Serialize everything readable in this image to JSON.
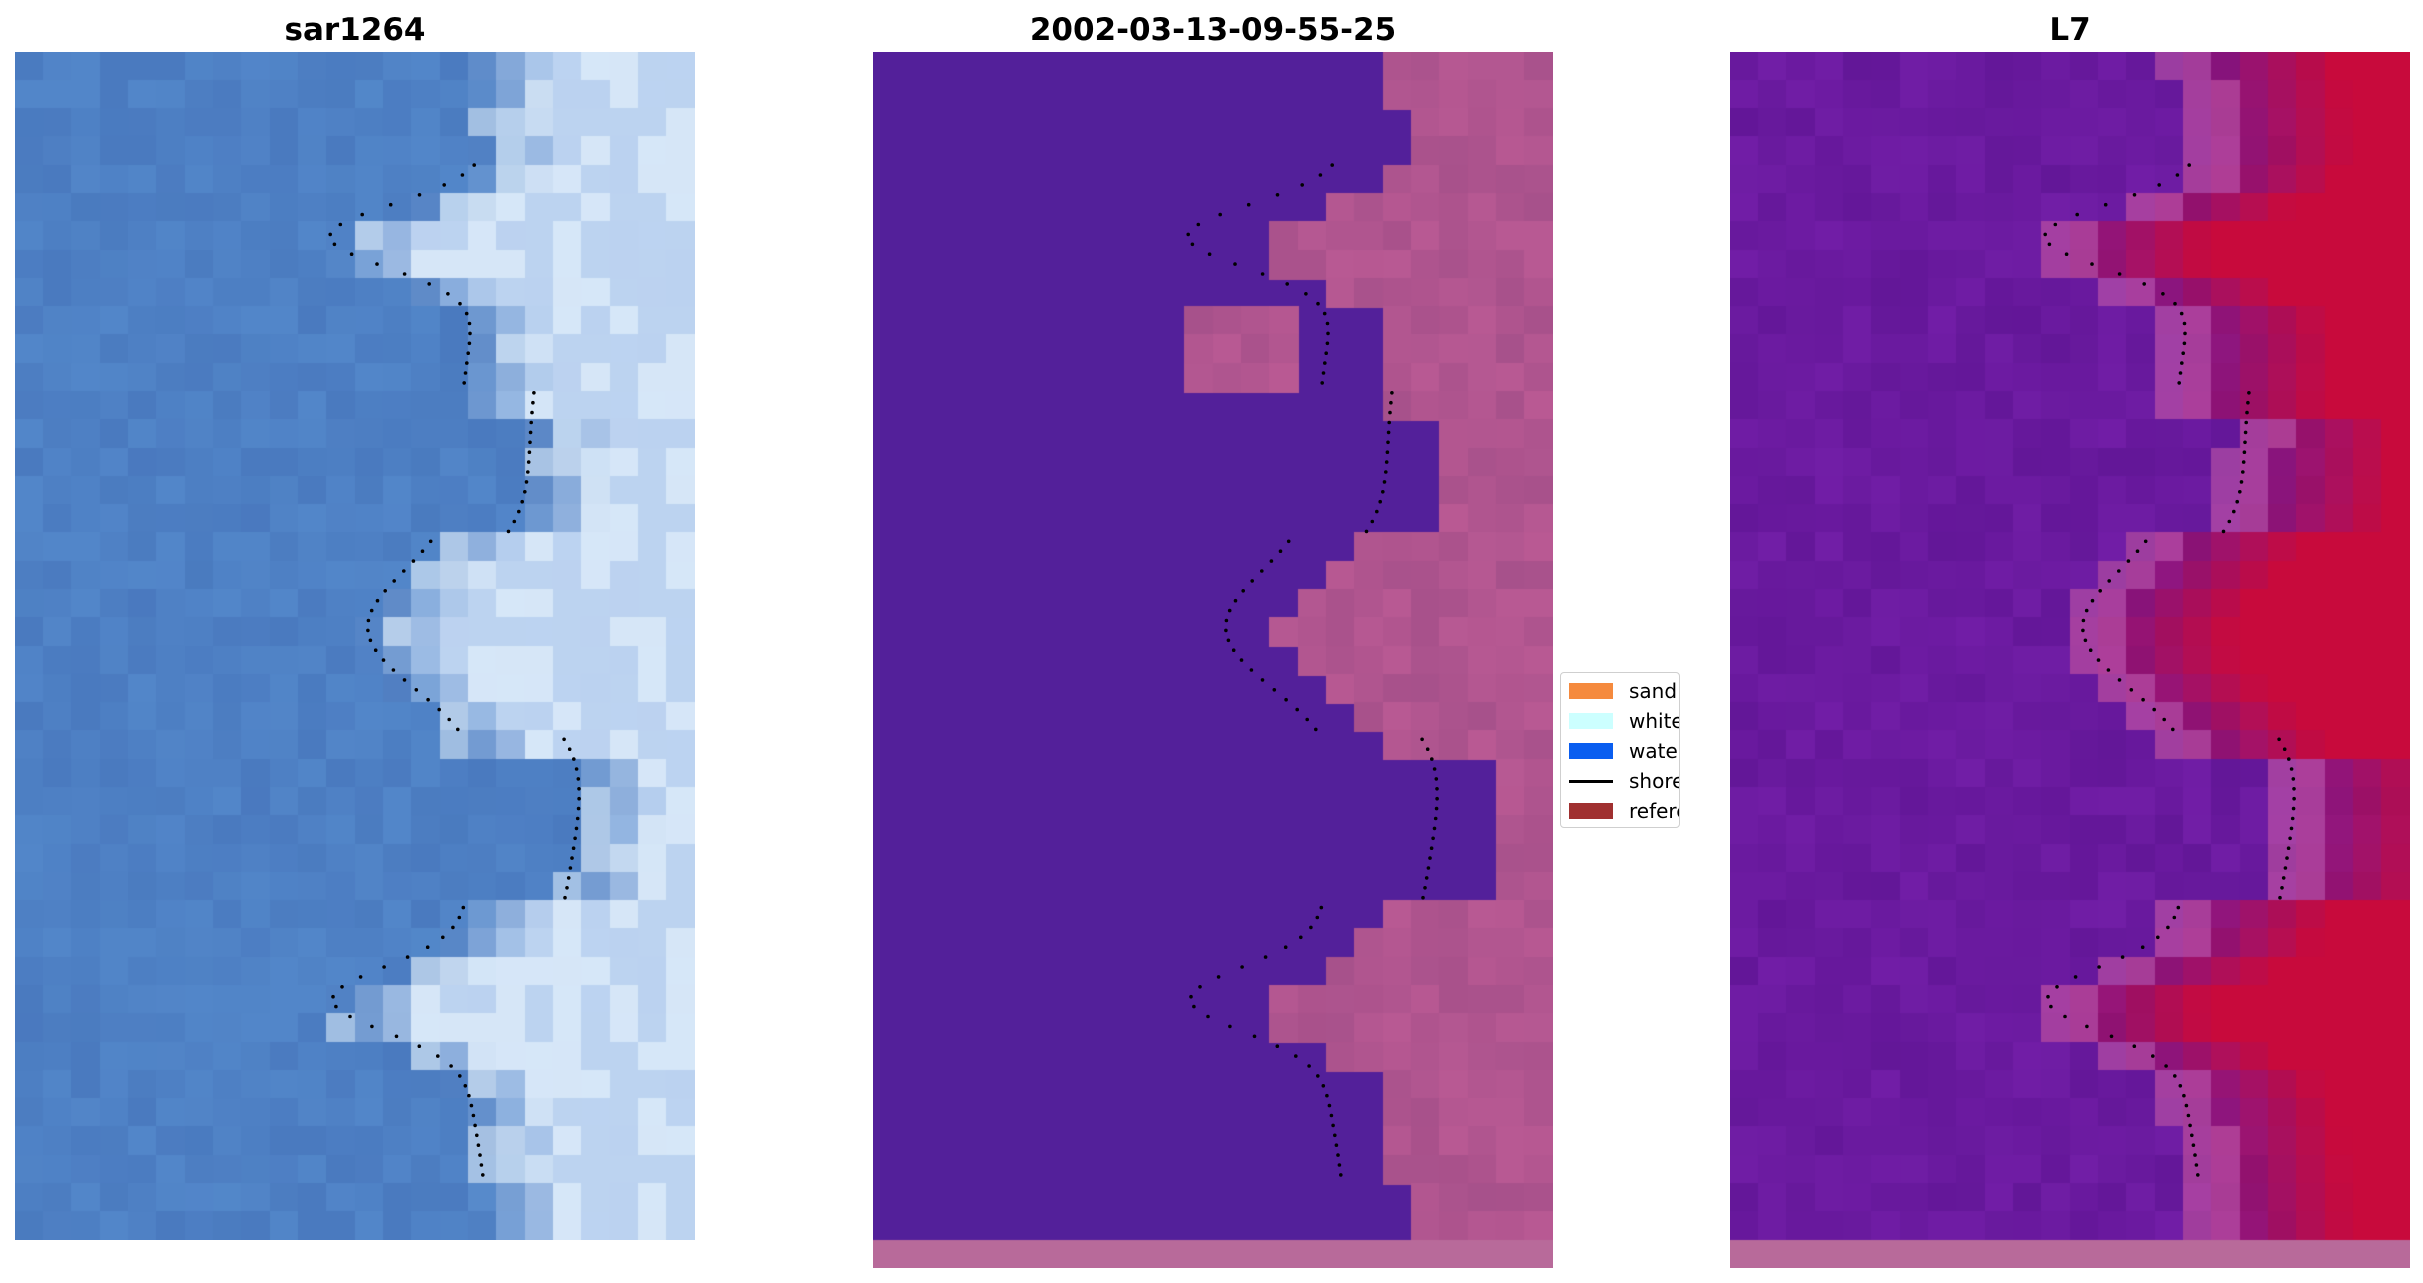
{
  "panels": [
    {
      "title": "sar1264",
      "kind": "rgb"
    },
    {
      "title": "2002-03-13-09-55-25",
      "kind": "classification"
    },
    {
      "title": "L7",
      "kind": "index"
    }
  ],
  "legend": {
    "items": [
      {
        "label": "sand",
        "color": "#f58a3e",
        "type": "patch"
      },
      {
        "label": "whitewater",
        "color": "#ccffff",
        "type": "patch"
      },
      {
        "label": "water",
        "color": "#0a5ef0",
        "type": "patch"
      },
      {
        "label": "shoreline",
        "color": "#000000",
        "type": "line"
      },
      {
        "label": "reference",
        "color": "#a03030",
        "type": "patch"
      }
    ]
  },
  "colors": {
    "background_water_class": "#53209a",
    "sand_overlay": "#b0558f",
    "rgb_water": "#4f82c4",
    "rgb_whitewater": "#dff0ff",
    "index_low": "#6a1a9f",
    "index_high": "#c80a3c"
  }
}
